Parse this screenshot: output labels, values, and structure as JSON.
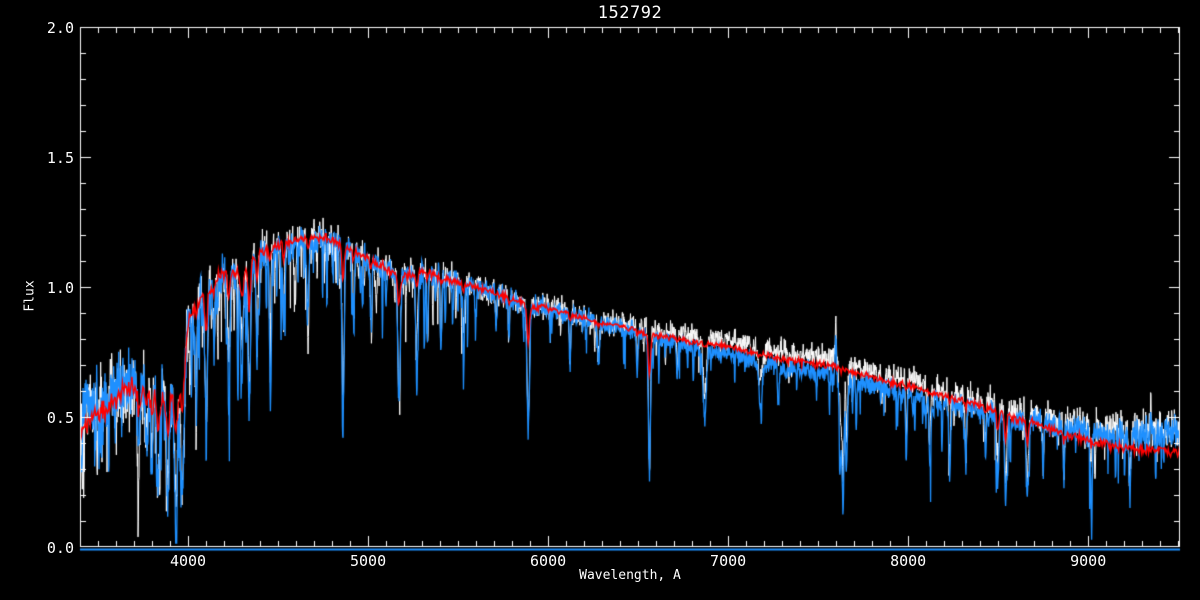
{
  "colors": {
    "background": "#000000",
    "axis": "#FFFFFF",
    "text": "#FFFFFF",
    "observed": "#FFFFFF",
    "smoothed": "#1E90FF",
    "model": "#FF0000",
    "zero_line": "#1E90FF"
  },
  "chart_data": {
    "type": "line",
    "title": "152792",
    "xlabel": "Wavelength, A",
    "ylabel": "Flux",
    "xlim": [
      3400,
      9510
    ],
    "ylim": [
      0.0,
      2.0
    ],
    "grid": false,
    "legend": null,
    "x_major_ticks": [
      4000,
      5000,
      6000,
      7000,
      8000,
      9000
    ],
    "x_tick_labels": [
      "4000",
      "5000",
      "6000",
      "7000",
      "8000",
      "9000"
    ],
    "x_minor_step": 100,
    "y_major_ticks": [
      0.0,
      0.5,
      1.0,
      1.5,
      2.0
    ],
    "y_tick_labels": [
      "0.0",
      "0.5",
      "1.0",
      "1.5",
      "2.0"
    ],
    "y_minor_step": 0.1,
    "zero_line": {
      "flux": 0.0,
      "color": "#1E90FF"
    },
    "continuum": [
      [
        3400,
        0.52
      ],
      [
        3500,
        0.57
      ],
      [
        3600,
        0.62
      ],
      [
        3650,
        0.65
      ],
      [
        3700,
        0.66
      ],
      [
        3750,
        0.66
      ],
      [
        3800,
        0.63
      ],
      [
        3850,
        0.6
      ],
      [
        3900,
        0.59
      ],
      [
        3950,
        0.62
      ],
      [
        3980,
        0.72
      ],
      [
        4000,
        0.88
      ],
      [
        4050,
        0.95
      ],
      [
        4100,
        0.99
      ],
      [
        4150,
        1.03
      ],
      [
        4200,
        1.06
      ],
      [
        4250,
        1.06
      ],
      [
        4300,
        1.06
      ],
      [
        4350,
        1.1
      ],
      [
        4400,
        1.13
      ],
      [
        4500,
        1.16
      ],
      [
        4600,
        1.18
      ],
      [
        4700,
        1.19
      ],
      [
        4800,
        1.18
      ],
      [
        4850,
        1.17
      ],
      [
        4900,
        1.14
      ],
      [
        5000,
        1.11
      ],
      [
        5100,
        1.07
      ],
      [
        5200,
        1.04
      ],
      [
        5300,
        1.06
      ],
      [
        5400,
        1.04
      ],
      [
        5500,
        1.02
      ],
      [
        5600,
        1.0
      ],
      [
        5700,
        0.98
      ],
      [
        5800,
        0.95
      ],
      [
        5900,
        0.93
      ],
      [
        6000,
        0.92
      ],
      [
        6100,
        0.9
      ],
      [
        6200,
        0.88
      ],
      [
        6300,
        0.86
      ],
      [
        6400,
        0.85
      ],
      [
        6500,
        0.83
      ],
      [
        6600,
        0.81
      ],
      [
        6700,
        0.8
      ],
      [
        6800,
        0.78
      ],
      [
        6900,
        0.77
      ],
      [
        7000,
        0.76
      ],
      [
        7100,
        0.74
      ],
      [
        7200,
        0.73
      ],
      [
        7300,
        0.71
      ],
      [
        7400,
        0.7
      ],
      [
        7500,
        0.69
      ],
      [
        7600,
        0.68
      ],
      [
        7700,
        0.66
      ],
      [
        7800,
        0.64
      ],
      [
        7900,
        0.62
      ],
      [
        8000,
        0.61
      ],
      [
        8100,
        0.59
      ],
      [
        8200,
        0.57
      ],
      [
        8300,
        0.55
      ],
      [
        8400,
        0.54
      ],
      [
        8500,
        0.52
      ],
      [
        8600,
        0.5
      ],
      [
        8700,
        0.49
      ],
      [
        8800,
        0.47
      ],
      [
        8900,
        0.46
      ],
      [
        9000,
        0.45
      ],
      [
        9100,
        0.44
      ],
      [
        9200,
        0.44
      ],
      [
        9300,
        0.43
      ],
      [
        9400,
        0.44
      ],
      [
        9510,
        0.43
      ]
    ],
    "absorption_features": [
      [
        3727,
        8,
        0.28,
        0.3
      ],
      [
        3770,
        6,
        0.25,
        0.3
      ],
      [
        3798,
        6,
        0.28,
        0.3
      ],
      [
        3835,
        7,
        0.38,
        0.3
      ],
      [
        3889,
        7,
        0.38,
        0.3
      ],
      [
        3933,
        8,
        0.5,
        0.3
      ],
      [
        3969,
        8,
        0.45,
        0.3
      ],
      [
        4045,
        5,
        0.28,
        0.2
      ],
      [
        4101,
        7,
        0.5,
        0.3
      ],
      [
        4144,
        5,
        0.25,
        0.2
      ],
      [
        4226,
        6,
        0.35,
        0.25
      ],
      [
        4300,
        9,
        0.28,
        0.35
      ],
      [
        4340,
        7,
        0.55,
        0.3
      ],
      [
        4383,
        5,
        0.35,
        0.25
      ],
      [
        4455,
        5,
        0.25,
        0.2
      ],
      [
        4531,
        5,
        0.28,
        0.2
      ],
      [
        4668,
        5,
        0.25,
        0.2
      ],
      [
        4861,
        6,
        0.68,
        0.2
      ],
      [
        4920,
        4,
        0.25,
        0.12
      ],
      [
        5015,
        4,
        0.22,
        0.12
      ],
      [
        5172,
        7,
        0.46,
        0.25
      ],
      [
        5270,
        6,
        0.3,
        0.2
      ],
      [
        5329,
        4,
        0.25,
        0.12
      ],
      [
        5405,
        4,
        0.28,
        0.12
      ],
      [
        5530,
        4,
        0.22,
        0.12
      ],
      [
        5711,
        4,
        0.15,
        0.1
      ],
      [
        5782,
        4,
        0.14,
        0.1
      ],
      [
        5890,
        7,
        0.48,
        0.3
      ],
      [
        6122,
        4,
        0.2,
        0.15
      ],
      [
        6280,
        6,
        0.15,
        0.05
      ],
      [
        6495,
        4,
        0.16,
        0.12
      ],
      [
        6563,
        6,
        0.53,
        0.3
      ],
      [
        6717,
        4,
        0.15,
        0.1
      ],
      [
        6870,
        9,
        0.26,
        0.05
      ],
      [
        7180,
        12,
        0.12,
        0.03
      ],
      [
        7630,
        10,
        0.3,
        0.03
      ],
      [
        7640,
        4,
        0.28,
        0.0
      ],
      [
        7660,
        5,
        0.22,
        0.0
      ],
      [
        7990,
        4,
        0.26,
        0.05
      ],
      [
        8120,
        4,
        0.24,
        0.05
      ],
      [
        8230,
        5,
        0.26,
        0.1
      ],
      [
        8320,
        4,
        0.22,
        0.08
      ],
      [
        8430,
        4,
        0.18,
        0.08
      ],
      [
        8498,
        6,
        0.26,
        0.3
      ],
      [
        8542,
        6,
        0.32,
        0.32
      ],
      [
        8662,
        6,
        0.29,
        0.3
      ],
      [
        8750,
        4,
        0.18,
        0.1
      ],
      [
        8865,
        4,
        0.2,
        0.1
      ],
      [
        9015,
        5,
        0.18,
        0.06
      ],
      [
        9230,
        7,
        0.14,
        0.05
      ]
    ],
    "emission_features": [
      [
        7598,
        3,
        0.17
      ],
      [
        9346,
        3,
        0.1
      ]
    ],
    "noise": {
      "amplitude_points": [
        [
          3400,
          0.115
        ],
        [
          3700,
          0.115
        ],
        [
          3900,
          0.09
        ],
        [
          4100,
          0.075
        ],
        [
          4400,
          0.062
        ],
        [
          5000,
          0.05
        ],
        [
          5600,
          0.042
        ],
        [
          6300,
          0.035
        ],
        [
          7000,
          0.034
        ],
        [
          7600,
          0.04
        ],
        [
          8200,
          0.04
        ],
        [
          8800,
          0.05
        ],
        [
          9200,
          0.06
        ],
        [
          9510,
          0.065
        ]
      ],
      "spike_segments": [
        {
          "range": [
            3400,
            4000
          ],
          "prob": 0.3,
          "max_depth": 0.3
        },
        {
          "range": [
            4000,
            4700
          ],
          "prob": 0.26,
          "max_depth": 0.38
        },
        {
          "range": [
            4700,
            5600
          ],
          "prob": 0.16,
          "max_depth": 0.3
        },
        {
          "range": [
            5600,
            6600
          ],
          "prob": 0.09,
          "max_depth": 0.16
        },
        {
          "range": [
            6600,
            7500
          ],
          "prob": 0.1,
          "max_depth": 0.16
        },
        {
          "range": [
            7500,
            8600
          ],
          "prob": 0.13,
          "max_depth": 0.22
        },
        {
          "range": [
            8600,
            9510
          ],
          "prob": 0.1,
          "max_depth": 0.26
        }
      ]
    },
    "series": [
      {
        "name": "observed-spectrum",
        "color": "#FFFFFF",
        "line_width": 1.0,
        "samples": 3300,
        "noise_seed": 101,
        "noise_scale": 1.0,
        "feature_scale": 0.9,
        "emission_scale": 1.0,
        "spike_seed": 7,
        "spike_scale": 0.8,
        "use_red_frac": false,
        "offset_points": [
          [
            3400,
            0
          ],
          [
            6300,
            0.005
          ],
          [
            6900,
            0.04
          ],
          [
            8000,
            0.035
          ],
          [
            8600,
            0.02
          ],
          [
            9000,
            0.012
          ],
          [
            9510,
            0.012
          ]
        ]
      },
      {
        "name": "smoothed-spectrum",
        "color": "#1E90FF",
        "line_width": 1.3,
        "samples": 3300,
        "noise_seed": 202,
        "noise_scale": 0.8,
        "feature_scale": 1.0,
        "emission_scale": 0.85,
        "spike_seed": 9,
        "spike_scale": 1.0,
        "use_red_frac": false,
        "offset_points": [
          [
            3400,
            0
          ],
          [
            6300,
            0
          ],
          [
            6900,
            -0.015
          ],
          [
            8000,
            -0.02
          ],
          [
            8700,
            -0.005
          ],
          [
            9510,
            0
          ]
        ]
      },
      {
        "name": "model-fit",
        "color": "#FF0000",
        "line_width": 1.4,
        "samples": 1400,
        "noise_seed": 303,
        "noise_scale": 0.28,
        "feature_scale": 0,
        "emission_scale": 0,
        "spike_seed": null,
        "spike_scale": 0,
        "use_red_frac": true,
        "offset_points": [
          [
            3400,
            -0.07
          ],
          [
            3700,
            -0.05
          ],
          [
            4100,
            -0.01
          ],
          [
            4400,
            0
          ],
          [
            6500,
            0
          ],
          [
            6900,
            0.012
          ],
          [
            8300,
            0.012
          ],
          [
            8700,
            -0.01
          ],
          [
            9000,
            -0.04
          ],
          [
            9300,
            -0.06
          ],
          [
            9510,
            -0.065
          ]
        ]
      }
    ]
  }
}
